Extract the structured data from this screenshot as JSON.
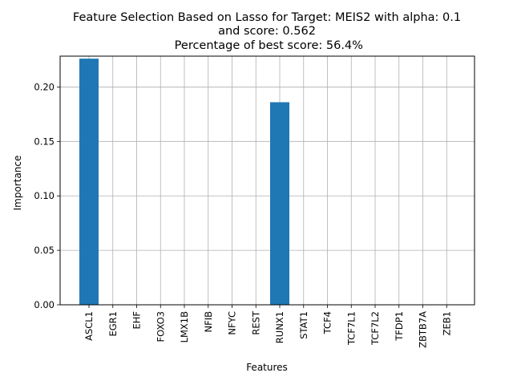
{
  "chart_data": {
    "type": "bar",
    "title_lines": [
      "Feature Selection Based on Lasso for Target: MEIS2 with alpha: 0.1",
      "and score: 0.562",
      " Percentage of best score: 56.4%"
    ],
    "xlabel": "Features",
    "ylabel": "Importance",
    "categories": [
      "ASCL1",
      "EGR1",
      "EHF",
      "FOXO3",
      "LMX1B",
      "NFIB",
      "NFYC",
      "REST",
      "RUNX1",
      "STAT1",
      "TCF4",
      "TCF7L1",
      "TCF7L2",
      "TFDP1",
      "ZBTB7A",
      "ZEB1"
    ],
    "values": [
      0.226,
      0,
      0,
      0,
      0,
      0,
      0,
      0,
      0.186,
      0,
      0,
      0,
      0,
      0,
      0,
      0
    ],
    "ylim": [
      0,
      0.2283
    ],
    "yticks": [
      0.0,
      0.05,
      0.1,
      0.15,
      0.2
    ],
    "ytick_labels": [
      "0.00",
      "0.05",
      "0.10",
      "0.15",
      "0.20"
    ],
    "grid": true,
    "bar_color": "#1f77b4",
    "grid_color": "#b0b0b0"
  }
}
